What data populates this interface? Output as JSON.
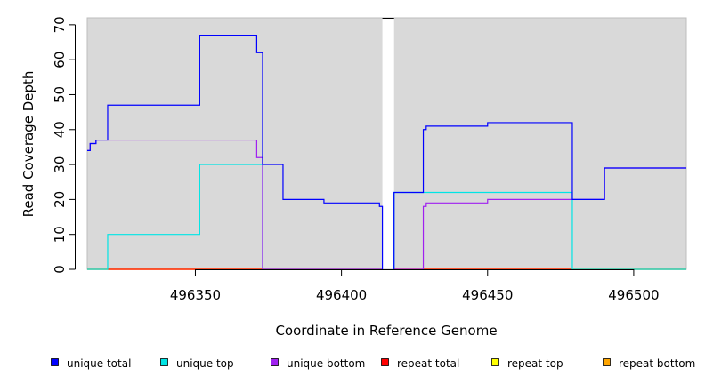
{
  "chart_data": {
    "type": "line",
    "xlabel": "Coordinate in Reference Genome",
    "ylabel": "Read Coverage Depth",
    "xlim": [
      496313,
      496518
    ],
    "ylim": [
      0,
      72
    ],
    "x_ticks": [
      496350,
      496400,
      496450,
      496500
    ],
    "x_tick_labels": [
      "496350",
      "496400",
      "496450",
      "496500"
    ],
    "y_ticks": [
      0,
      10,
      20,
      30,
      40,
      50,
      60,
      70
    ],
    "y_tick_labels": [
      "0",
      "10",
      "20",
      "30",
      "40",
      "50",
      "60",
      "70"
    ],
    "grid": false,
    "background": "#d9d9d9",
    "gap_region": [
      496414,
      496418
    ],
    "legend_position": "bottom",
    "series": [
      {
        "name": "unique total",
        "color": "#0000ff",
        "segments": [
          [
            [
              496313,
              34
            ],
            [
              496314,
              34
            ],
            [
              496314,
              36
            ],
            [
              496316,
              36
            ],
            [
              496316,
              37
            ],
            [
              496320,
              37
            ],
            [
              496320,
              47
            ],
            [
              496351.5,
              47
            ],
            [
              496351.5,
              67
            ],
            [
              496371,
              67
            ],
            [
              496371,
              62
            ],
            [
              496373,
              62
            ],
            [
              496373,
              30
            ],
            [
              496380,
              30
            ],
            [
              496380,
              20
            ],
            [
              496394,
              20
            ],
            [
              496394,
              19
            ],
            [
              496413,
              19
            ],
            [
              496413,
              18
            ],
            [
              496414,
              18
            ],
            [
              496414,
              0
            ]
          ],
          [
            [
              496418,
              0
            ],
            [
              496418,
              22
            ],
            [
              496428,
              22
            ],
            [
              496428,
              40
            ],
            [
              496429,
              40
            ],
            [
              496429,
              41
            ],
            [
              496450,
              41
            ],
            [
              496450,
              42
            ],
            [
              496479,
              42
            ],
            [
              496479,
              20
            ],
            [
              496490,
              20
            ],
            [
              496490,
              29
            ],
            [
              496518,
              29
            ]
          ]
        ]
      },
      {
        "name": "unique top",
        "color": "#00e5e5",
        "segments": [
          [
            [
              496313,
              0
            ],
            [
              496320,
              0
            ],
            [
              496320,
              10
            ],
            [
              496351.5,
              10
            ],
            [
              496351.5,
              30
            ],
            [
              496373,
              30
            ],
            [
              496373,
              0
            ],
            [
              496414,
              0
            ]
          ],
          [
            [
              496418,
              0
            ],
            [
              496418,
              22
            ],
            [
              496479,
              22
            ],
            [
              496479,
              0
            ],
            [
              496518,
              0
            ]
          ]
        ]
      },
      {
        "name": "unique bottom",
        "color": "#a020f0",
        "segments": [
          [
            [
              496313,
              34
            ],
            [
              496314,
              34
            ],
            [
              496314,
              36
            ],
            [
              496316,
              36
            ],
            [
              496316,
              37
            ],
            [
              496371,
              37
            ],
            [
              496371,
              32
            ],
            [
              496373,
              32
            ],
            [
              496373,
              0
            ],
            [
              496414,
              0
            ]
          ],
          [
            [
              496418,
              0
            ],
            [
              496428,
              0
            ],
            [
              496428,
              18
            ],
            [
              496429,
              18
            ],
            [
              496429,
              19
            ],
            [
              496450,
              19
            ],
            [
              496450,
              20
            ],
            [
              496479,
              20
            ],
            [
              496490,
              20
            ],
            [
              496490,
              29
            ],
            [
              496518,
              29
            ]
          ]
        ]
      },
      {
        "name": "repeat total",
        "color": "#ff0000",
        "segments": [
          [
            [
              496313,
              0
            ],
            [
              496414,
              0
            ]
          ],
          [
            [
              496418,
              0
            ],
            [
              496518,
              0
            ]
          ]
        ]
      },
      {
        "name": "repeat top",
        "color": "#ffff00",
        "segments": [
          [
            [
              496313,
              0
            ],
            [
              496414,
              0
            ]
          ],
          [
            [
              496418,
              0
            ],
            [
              496518,
              0
            ]
          ]
        ]
      },
      {
        "name": "repeat bottom",
        "color": "#ffa500",
        "segments": [
          [
            [
              496313,
              0
            ],
            [
              496414,
              0
            ]
          ],
          [
            [
              496418,
              0
            ],
            [
              496518,
              0
            ]
          ]
        ]
      }
    ]
  }
}
